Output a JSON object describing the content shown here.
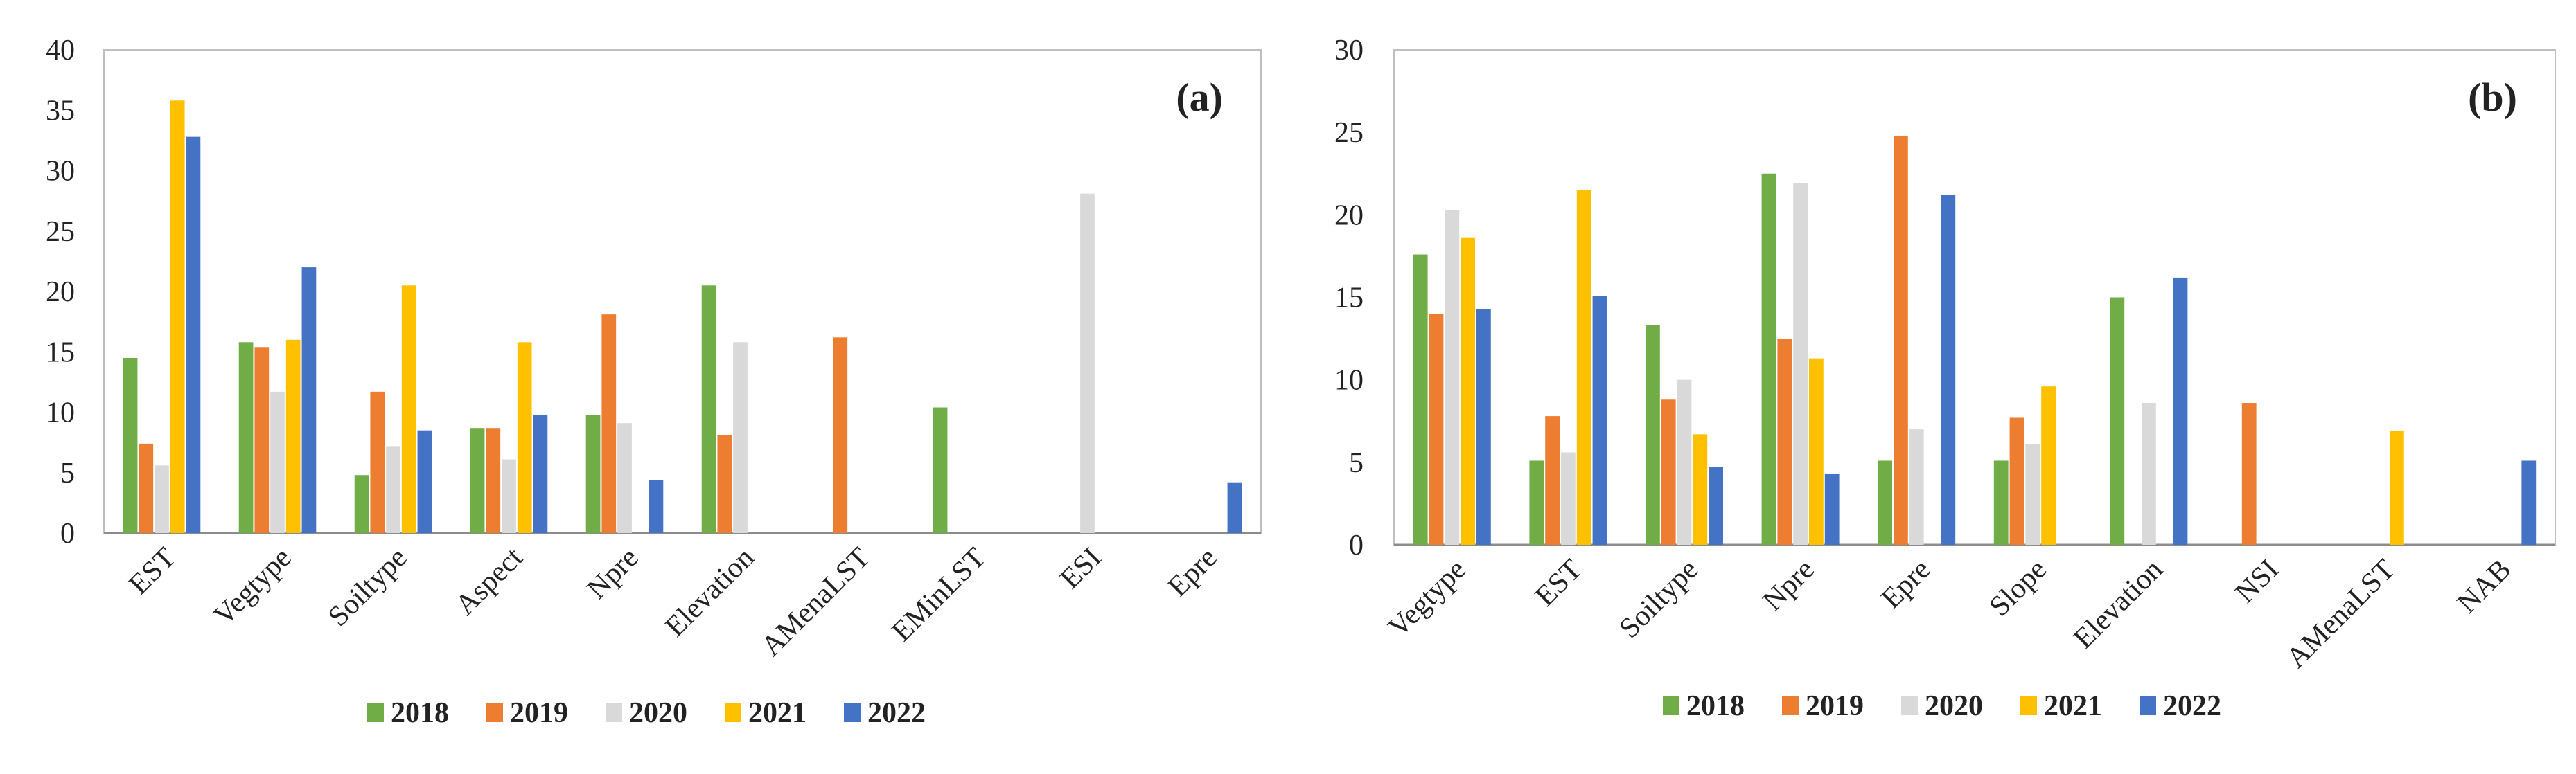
{
  "chart_data": [
    {
      "type": "bar",
      "panel_label": "(a)",
      "title": "",
      "xlabel": "",
      "ylabel": "",
      "ylim": [
        0,
        40
      ],
      "yticks": [
        "0",
        "5",
        "10",
        "15",
        "20",
        "25",
        "30",
        "35",
        "40"
      ],
      "grid": false,
      "legend_position": "bottom-center",
      "categories": [
        "EST",
        "Vegtype",
        "Soiltype",
        "Aspect",
        "Npre",
        "Elevation",
        "AMenaLST",
        "EMinLST",
        "ESI",
        "Epre"
      ],
      "series": [
        {
          "name": "2018",
          "color": "#70ad47",
          "values": [
            14.5,
            15.8,
            4.8,
            8.7,
            9.8,
            20.5,
            0,
            10.4,
            0,
            0
          ]
        },
        {
          "name": "2019",
          "color": "#ed7d31",
          "values": [
            7.4,
            15.4,
            11.7,
            8.7,
            18.1,
            8.1,
            16.2,
            0,
            0,
            0
          ]
        },
        {
          "name": "2020",
          "color": "#d9d9d9",
          "values": [
            5.6,
            11.7,
            7.2,
            6.1,
            9.1,
            15.8,
            0,
            0,
            28.1,
            0
          ]
        },
        {
          "name": "2021",
          "color": "#ffc000",
          "values": [
            35.8,
            16.0,
            20.5,
            15.8,
            0,
            0,
            0,
            0,
            0,
            0
          ]
        },
        {
          "name": "2022",
          "color": "#4472c4",
          "values": [
            32.8,
            22.0,
            8.5,
            9.8,
            4.4,
            0,
            0,
            0,
            0,
            4.2
          ]
        }
      ]
    },
    {
      "type": "bar",
      "panel_label": "(b)",
      "title": "",
      "xlabel": "",
      "ylabel": "",
      "ylim": [
        0,
        30
      ],
      "yticks": [
        "0",
        "5",
        "10",
        "15",
        "20",
        "25",
        "30"
      ],
      "grid": false,
      "legend_position": "bottom-center",
      "categories": [
        "Vegtype",
        "EST",
        "Soiltype",
        "Npre",
        "Epre",
        "Slope",
        "Elevation",
        "NSI",
        "AMenaLST",
        "NAB"
      ],
      "series": [
        {
          "name": "2018",
          "color": "#70ad47",
          "values": [
            17.6,
            5.1,
            13.3,
            22.5,
            5.1,
            5.1,
            15.0,
            0,
            0,
            0
          ]
        },
        {
          "name": "2019",
          "color": "#ed7d31",
          "values": [
            14.0,
            7.8,
            8.8,
            12.5,
            24.8,
            7.7,
            0,
            8.6,
            0,
            0
          ]
        },
        {
          "name": "2020",
          "color": "#d9d9d9",
          "values": [
            20.3,
            5.6,
            10.0,
            21.9,
            7.0,
            6.1,
            8.6,
            0,
            0,
            0
          ]
        },
        {
          "name": "2021",
          "color": "#ffc000",
          "values": [
            18.6,
            21.5,
            6.7,
            11.3,
            0,
            9.6,
            0,
            0,
            6.9,
            0
          ]
        },
        {
          "name": "2022",
          "color": "#4472c4",
          "values": [
            14.3,
            15.1,
            4.7,
            4.3,
            21.2,
            0,
            16.2,
            0,
            0,
            5.1
          ]
        }
      ]
    }
  ]
}
